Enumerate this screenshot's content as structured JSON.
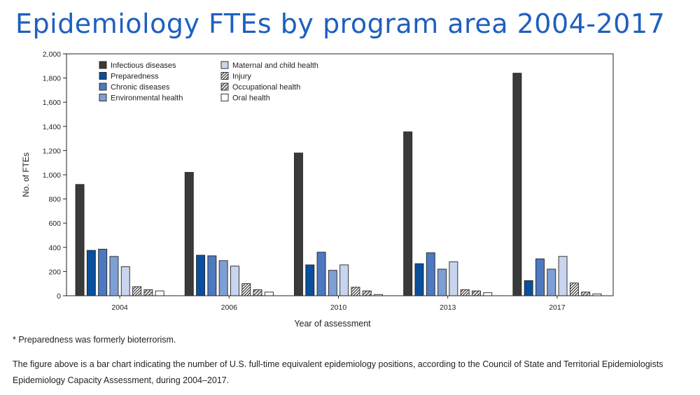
{
  "title": "Epidemiology FTEs by program area 2004-2017",
  "footnote": "* Preparedness was formerly bioterrorism.",
  "caption": "The figure above is a bar chart indicating the number of U.S. full-time equivalent epidemiology positions, according to the Council of State and Territorial Epidemiologists Epidemiology Capacity Assessment, during 2004–2017.",
  "chart_data": {
    "type": "bar",
    "title": "Epidemiology FTEs by program area 2004-2017",
    "xlabel": "Year of assessment",
    "ylabel": "No. of FTEs",
    "ylim": [
      0,
      2000
    ],
    "ytick_step": 200,
    "yticks": [
      "0",
      "200",
      "400",
      "600",
      "800",
      "1,000",
      "1,200",
      "1,400",
      "1,600",
      "1,800",
      "2,000"
    ],
    "categories": [
      "2004",
      "2006",
      "2010",
      "2013",
      "2017"
    ],
    "legend_position": "top-left",
    "series": [
      {
        "name": "Infectious diseases",
        "values": [
          920,
          1020,
          1180,
          1355,
          1840
        ],
        "color": "#3a3a3a",
        "pattern": "solid"
      },
      {
        "name": "Preparedness",
        "values": [
          375,
          335,
          255,
          265,
          125
        ],
        "color": "#0a4f9c",
        "pattern": "solid"
      },
      {
        "name": "Chronic diseases",
        "values": [
          385,
          330,
          360,
          355,
          305
        ],
        "color": "#4d79c0",
        "pattern": "solid"
      },
      {
        "name": "Environmental health",
        "values": [
          325,
          290,
          210,
          220,
          220
        ],
        "color": "#7e9fd6",
        "pattern": "solid"
      },
      {
        "name": "Maternal and child health",
        "values": [
          240,
          245,
          255,
          280,
          325
        ],
        "color": "#c9d5ef",
        "pattern": "solid"
      },
      {
        "name": "Injury",
        "values": [
          75,
          100,
          70,
          50,
          105
        ],
        "color": "#ffffff",
        "pattern": "hatch-dense"
      },
      {
        "name": "Occupational health",
        "values": [
          50,
          50,
          40,
          40,
          30
        ],
        "color": "#ffffff",
        "pattern": "hatch"
      },
      {
        "name": "Oral health",
        "values": [
          40,
          30,
          10,
          25,
          15
        ],
        "color": "#ffffff",
        "pattern": "solid"
      }
    ]
  }
}
